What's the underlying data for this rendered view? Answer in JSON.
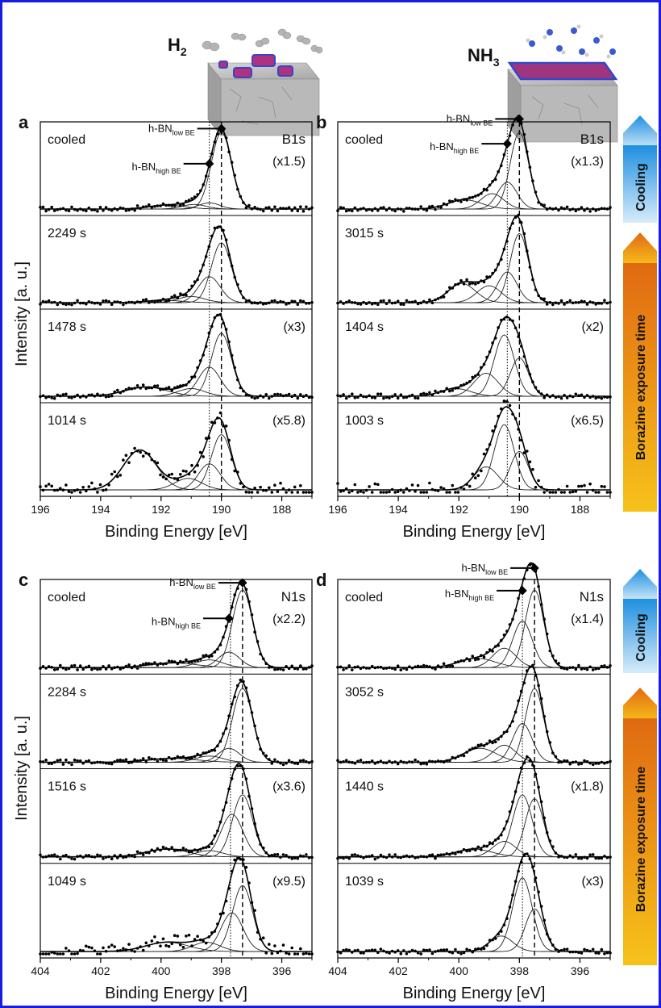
{
  "colors": {
    "border": "#1a1ae6",
    "h2": "#e8231c",
    "nh3": "#1a35e0",
    "cooling_top": "#1e8fe0",
    "cooling_bottom": "#d6ecfa",
    "exposure_top": "#e06a12",
    "exposure_bottom": "#f7c21a"
  },
  "insets": {
    "left_gas": "H2",
    "right_gas": "NH3"
  },
  "side_arrows": {
    "cooling": "Cooling",
    "exposure": "Borazine exposure time"
  },
  "chart_data": [
    {
      "type": "line",
      "panel": "a",
      "core_level": "B1s",
      "xlabel": "Binding Energy [eV]",
      "ylabel": "Intensity [a. u.]",
      "xlim": [
        196,
        187
      ],
      "xticks": [
        196,
        194,
        192,
        190,
        188
      ],
      "reference_lines": {
        "dotted": 190.4,
        "dashed": 190.0
      },
      "peak_labels": [
        "h-BN low BE",
        "h-BN high BE"
      ],
      "series": [
        {
          "label": "cooled",
          "scale": "(x1.5)",
          "components": [
            {
              "center": 190.0,
              "height": 1.0,
              "width": 0.33
            },
            {
              "center": 190.4,
              "height": 0.08,
              "width": 0.35
            },
            {
              "center": 190.9,
              "height": 0.06,
              "width": 0.4
            },
            {
              "center": 191.8,
              "height": 0.05,
              "width": 0.6
            }
          ]
        },
        {
          "label": "2249 s",
          "scale": "",
          "components": [
            {
              "center": 190.0,
              "height": 0.78,
              "width": 0.33
            },
            {
              "center": 190.4,
              "height": 0.34,
              "width": 0.36
            },
            {
              "center": 191.0,
              "height": 0.08,
              "width": 0.45
            },
            {
              "center": 191.9,
              "height": 0.03,
              "width": 0.6
            }
          ]
        },
        {
          "label": "1478 s",
          "scale": "(x3)",
          "components": [
            {
              "center": 190.0,
              "height": 0.82,
              "width": 0.33
            },
            {
              "center": 190.4,
              "height": 0.38,
              "width": 0.36
            },
            {
              "center": 191.0,
              "height": 0.1,
              "width": 0.45
            },
            {
              "center": 192.5,
              "height": 0.12,
              "width": 0.7
            }
          ]
        },
        {
          "label": "1014 s",
          "scale": "(x5.8)",
          "components": [
            {
              "center": 190.0,
              "height": 0.72,
              "width": 0.33
            },
            {
              "center": 190.4,
              "height": 0.34,
              "width": 0.36
            },
            {
              "center": 191.1,
              "height": 0.15,
              "width": 0.45
            },
            {
              "center": 192.7,
              "height": 0.52,
              "width": 0.55
            }
          ]
        }
      ]
    },
    {
      "type": "line",
      "panel": "b",
      "core_level": "B1s",
      "xlabel": "Binding Energy [eV]",
      "xlim": [
        196,
        187
      ],
      "xticks": [
        196,
        194,
        192,
        190,
        188
      ],
      "reference_lines": {
        "dotted": 190.4,
        "dashed": 190.0
      },
      "peak_labels": [
        "h-BN low BE",
        "h-BN high BE"
      ],
      "series": [
        {
          "label": "cooled",
          "scale": "(x1.3)",
          "components": [
            {
              "center": 190.0,
              "height": 1.0,
              "width": 0.3
            },
            {
              "center": 190.4,
              "height": 0.35,
              "width": 0.32
            },
            {
              "center": 190.9,
              "height": 0.2,
              "width": 0.38
            },
            {
              "center": 191.8,
              "height": 0.12,
              "width": 0.55
            }
          ]
        },
        {
          "label": "3015 s",
          "scale": "",
          "components": [
            {
              "center": 190.0,
              "height": 0.9,
              "width": 0.3
            },
            {
              "center": 190.4,
              "height": 0.4,
              "width": 0.32
            },
            {
              "center": 191.0,
              "height": 0.22,
              "width": 0.4
            },
            {
              "center": 191.9,
              "height": 0.25,
              "width": 0.45
            }
          ]
        },
        {
          "label": "1404 s",
          "scale": "(x2)",
          "components": [
            {
              "center": 190.0,
              "height": 0.5,
              "width": 0.3
            },
            {
              "center": 190.5,
              "height": 0.8,
              "width": 0.33
            },
            {
              "center": 191.1,
              "height": 0.3,
              "width": 0.4
            },
            {
              "center": 192.1,
              "height": 0.1,
              "width": 0.5
            }
          ]
        },
        {
          "label": "1003 s",
          "scale": "(x6.5)",
          "components": [
            {
              "center": 190.0,
              "height": 0.5,
              "width": 0.3
            },
            {
              "center": 190.5,
              "height": 0.85,
              "width": 0.33
            },
            {
              "center": 191.1,
              "height": 0.3,
              "width": 0.4
            }
          ]
        }
      ]
    },
    {
      "type": "line",
      "panel": "c",
      "core_level": "N1s",
      "xlabel": "Binding Energy [eV]",
      "ylabel": "Intensity [a. u.]",
      "xlim": [
        404,
        395
      ],
      "xticks": [
        404,
        402,
        400,
        398,
        396
      ],
      "reference_lines": {
        "dotted": 397.7,
        "dashed": 397.3
      },
      "peak_labels": [
        "h-BN low BE",
        "h-BN high BE"
      ],
      "series": [
        {
          "label": "cooled",
          "scale": "(x2.2)",
          "components": [
            {
              "center": 397.3,
              "height": 1.0,
              "width": 0.33
            },
            {
              "center": 397.75,
              "height": 0.2,
              "width": 0.35
            },
            {
              "center": 398.4,
              "height": 0.1,
              "width": 0.45
            },
            {
              "center": 399.6,
              "height": 0.06,
              "width": 0.8
            }
          ]
        },
        {
          "label": "2284 s",
          "scale": "",
          "components": [
            {
              "center": 397.3,
              "height": 0.95,
              "width": 0.33
            },
            {
              "center": 397.75,
              "height": 0.18,
              "width": 0.35
            },
            {
              "center": 398.4,
              "height": 0.08,
              "width": 0.45
            },
            {
              "center": 399.6,
              "height": 0.05,
              "width": 0.8
            }
          ]
        },
        {
          "label": "1516 s",
          "scale": "(x3.6)",
          "components": [
            {
              "center": 397.3,
              "height": 0.8,
              "width": 0.33
            },
            {
              "center": 397.65,
              "height": 0.55,
              "width": 0.36
            },
            {
              "center": 398.4,
              "height": 0.08,
              "width": 0.45
            },
            {
              "center": 399.8,
              "height": 0.1,
              "width": 0.7
            }
          ]
        },
        {
          "label": "1049 s",
          "scale": "(x9.5)",
          "components": [
            {
              "center": 397.3,
              "height": 0.85,
              "width": 0.33
            },
            {
              "center": 397.65,
              "height": 0.5,
              "width": 0.36
            },
            {
              "center": 398.5,
              "height": 0.12,
              "width": 0.45
            },
            {
              "center": 399.8,
              "height": 0.12,
              "width": 0.7
            }
          ]
        }
      ]
    },
    {
      "type": "line",
      "panel": "d",
      "core_level": "N1s",
      "xlabel": "Binding Energy [eV]",
      "xlim": [
        404,
        395
      ],
      "xticks": [
        404,
        402,
        400,
        398,
        396
      ],
      "reference_lines": {
        "dotted": 397.9,
        "dashed": 397.5
      },
      "peak_labels": [
        "h-BN low BE",
        "h-BN high BE"
      ],
      "series": [
        {
          "label": "cooled",
          "scale": "(x1.4)",
          "components": [
            {
              "center": 397.5,
              "height": 1.0,
              "width": 0.3
            },
            {
              "center": 397.9,
              "height": 0.6,
              "width": 0.32
            },
            {
              "center": 398.5,
              "height": 0.25,
              "width": 0.38
            },
            {
              "center": 399.4,
              "height": 0.12,
              "width": 0.6
            }
          ]
        },
        {
          "label": "3052 s",
          "scale": "",
          "components": [
            {
              "center": 397.5,
              "height": 0.95,
              "width": 0.3
            },
            {
              "center": 397.9,
              "height": 0.5,
              "width": 0.32
            },
            {
              "center": 398.5,
              "height": 0.22,
              "width": 0.38
            },
            {
              "center": 399.3,
              "height": 0.18,
              "width": 0.55
            }
          ]
        },
        {
          "label": "1440 s",
          "scale": "(x1.8)",
          "components": [
            {
              "center": 397.5,
              "height": 0.75,
              "width": 0.3
            },
            {
              "center": 397.9,
              "height": 0.8,
              "width": 0.32
            },
            {
              "center": 398.5,
              "height": 0.2,
              "width": 0.38
            },
            {
              "center": 399.5,
              "height": 0.1,
              "width": 0.6
            }
          ]
        },
        {
          "label": "1039 s",
          "scale": "(x3)",
          "components": [
            {
              "center": 397.5,
              "height": 0.55,
              "width": 0.3
            },
            {
              "center": 397.9,
              "height": 0.95,
              "width": 0.32
            },
            {
              "center": 398.6,
              "height": 0.2,
              "width": 0.38
            }
          ]
        }
      ]
    }
  ]
}
